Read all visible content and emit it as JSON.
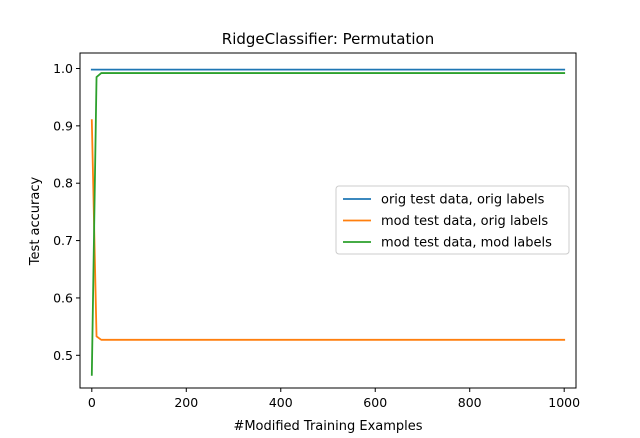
{
  "chart_data": {
    "type": "line",
    "title": "RidgeClassifier: Permutation",
    "xlabel": "#Modified Training Examples",
    "ylabel": "Test accuracy",
    "xlim": [
      -25,
      1025
    ],
    "ylim": [
      0.443,
      1.027
    ],
    "xticks": [
      0,
      200,
      400,
      600,
      800,
      1000
    ],
    "xtick_labels": [
      "0",
      "200",
      "400",
      "600",
      "800",
      "1000"
    ],
    "yticks": [
      0.5,
      0.6,
      0.7,
      0.8,
      0.9,
      1.0
    ],
    "ytick_labels": [
      "0.5",
      "0.6",
      "0.7",
      "0.8",
      "0.9",
      "1.0"
    ],
    "grid": false,
    "legend_position": "center-right",
    "series": [
      {
        "name": "orig test data, orig labels",
        "color": "#1f77b4",
        "x": [
          0,
          10,
          20,
          50,
          100,
          200,
          300,
          400,
          500,
          600,
          700,
          800,
          900,
          1000
        ],
        "y": [
          0.998,
          0.998,
          0.998,
          0.998,
          0.998,
          0.998,
          0.998,
          0.998,
          0.998,
          0.998,
          0.998,
          0.998,
          0.998,
          0.998
        ]
      },
      {
        "name": "mod test data, orig labels",
        "color": "#ff7f0e",
        "x": [
          0,
          10,
          20,
          50,
          100,
          200,
          300,
          400,
          500,
          600,
          700,
          800,
          900,
          1000
        ],
        "y": [
          0.91,
          0.533,
          0.527,
          0.527,
          0.527,
          0.527,
          0.527,
          0.527,
          0.527,
          0.527,
          0.527,
          0.527,
          0.527,
          0.527
        ]
      },
      {
        "name": "mod test data, mod labels",
        "color": "#2ca02c",
        "x": [
          0,
          10,
          20,
          50,
          100,
          200,
          300,
          400,
          500,
          600,
          700,
          800,
          900,
          1000
        ],
        "y": [
          0.466,
          0.985,
          0.992,
          0.992,
          0.992,
          0.992,
          0.992,
          0.992,
          0.992,
          0.992,
          0.992,
          0.992,
          0.992,
          0.992
        ]
      }
    ]
  }
}
